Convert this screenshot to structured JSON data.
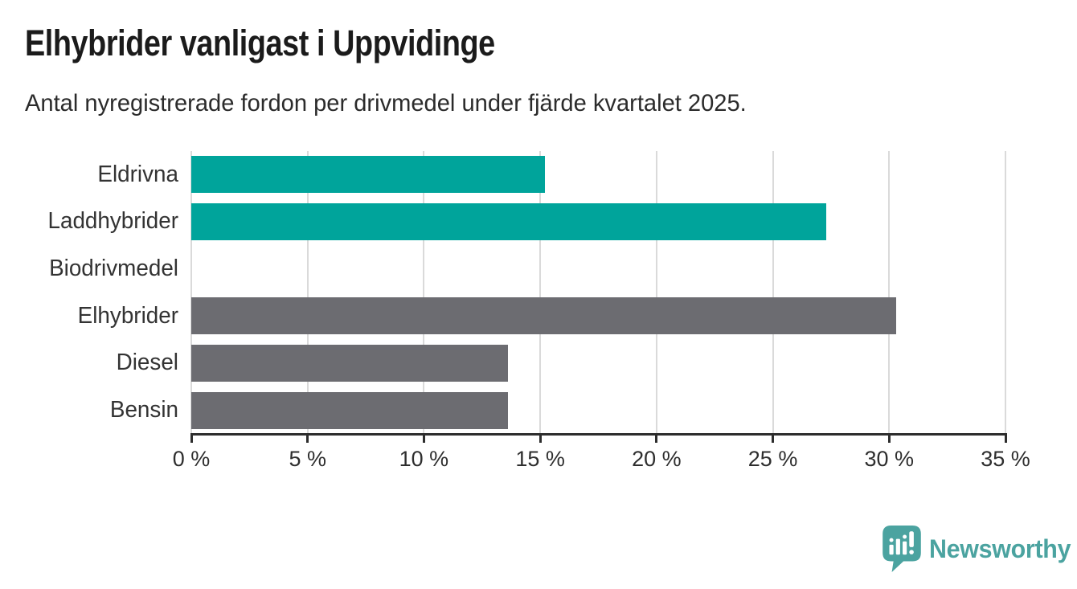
{
  "header": {
    "title": "Elhybrider vanligast i Uppvidinge",
    "subtitle": "Antal nyregistrerade fordon per drivmedel under fjärde kvartalet 2025."
  },
  "chart_data": {
    "type": "bar",
    "orientation": "horizontal",
    "title": "Elhybrider vanligast i Uppvidinge",
    "subtitle": "Antal nyregistrerade fordon per drivmedel under fjärde kvartalet 2025.",
    "categories": [
      "Eldrivna",
      "Laddhybrider",
      "Biodrivmedel",
      "Elhybrider",
      "Diesel",
      "Bensin"
    ],
    "values": [
      15.2,
      27.3,
      0,
      30.3,
      13.6,
      13.6
    ],
    "bar_colors": [
      "#00a49b",
      "#00a49b",
      "#6c6c71",
      "#6c6c71",
      "#6c6c71",
      "#6c6c71"
    ],
    "xlabel": "",
    "ylabel": "",
    "xlim": [
      0,
      35
    ],
    "x_ticks": [
      0,
      5,
      10,
      15,
      20,
      25,
      30,
      35
    ],
    "x_tick_labels": [
      "0 %",
      "5 %",
      "10 %",
      "15 %",
      "20 %",
      "25 %",
      "30 %",
      "35 %"
    ],
    "grid": "vertical-only",
    "legend": "none"
  },
  "colors": {
    "accent_teal": "#00a49b",
    "bar_gray": "#6c6c71",
    "gridline": "#dadada",
    "axis": "#2d2d2d",
    "logo_teal": "#4ba3a0",
    "text_dark": "#1b1b1b"
  },
  "footer": {
    "brand": "Newsworthy"
  }
}
